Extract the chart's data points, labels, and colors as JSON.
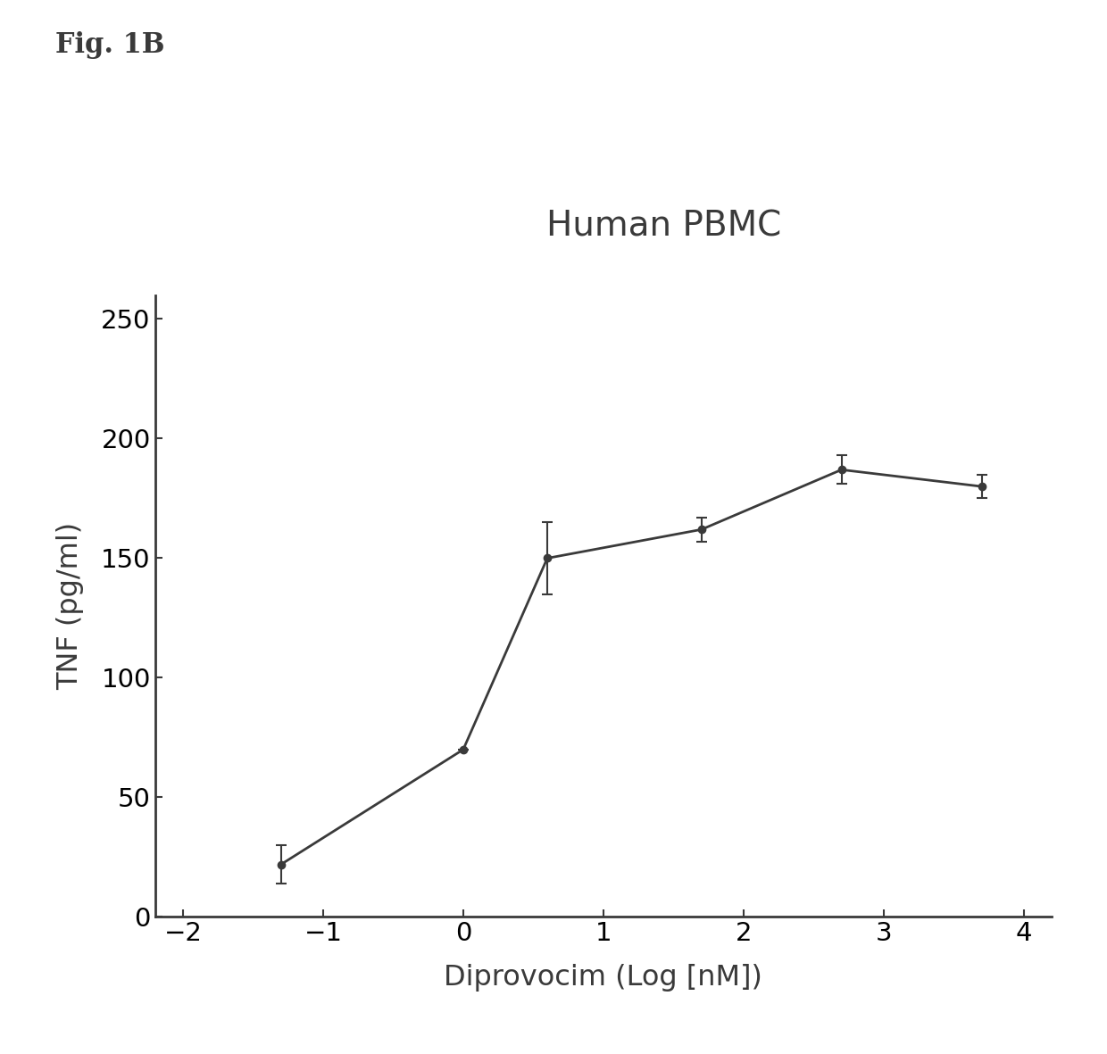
{
  "title": "Human PBMC",
  "xlabel": "Diprovocim (Log [nM])",
  "ylabel": "TNF (pg/ml)",
  "fig_label": "Fig. 1B",
  "x": [
    -1.3,
    0.0,
    0.6,
    1.7,
    2.7,
    3.7
  ],
  "y": [
    22,
    70,
    150,
    162,
    187,
    180
  ],
  "yerr": [
    8,
    0,
    15,
    5,
    6,
    5
  ],
  "xlim": [
    -2.2,
    4.2
  ],
  "ylim": [
    0,
    260
  ],
  "yticks": [
    0,
    50,
    100,
    150,
    200,
    250
  ],
  "xticks": [
    -2,
    -1,
    0,
    1,
    2,
    3,
    4
  ],
  "line_color": "#3a3a3a",
  "marker": "o",
  "marker_size": 6,
  "marker_color": "#3a3a3a",
  "line_width": 2.0,
  "background_color": "#ffffff",
  "title_fontsize": 28,
  "label_fontsize": 23,
  "tick_fontsize": 21,
  "fig_label_fontsize": 22,
  "capsize": 4
}
